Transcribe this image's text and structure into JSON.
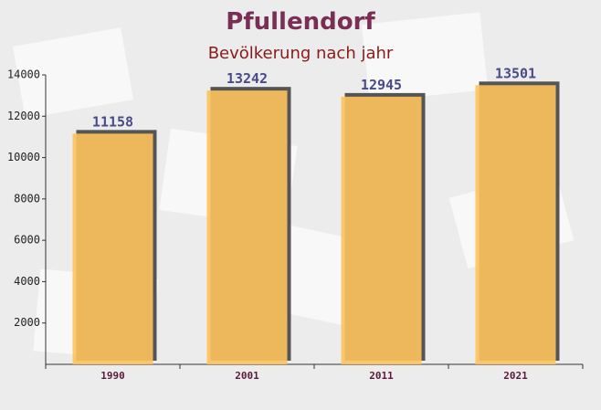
{
  "chart_data": {
    "type": "bar",
    "title": "Pfullendorf",
    "subtitle": "Bevölkerung nach jahr",
    "categories": [
      "1990",
      "2001",
      "2011",
      "2021"
    ],
    "values": [
      11158,
      13242,
      12945,
      13501
    ],
    "color": "#fdc35c",
    "ylim": [
      0,
      14000
    ],
    "yticks": [
      2000,
      4000,
      6000,
      8000,
      10000,
      12000,
      14000
    ]
  }
}
